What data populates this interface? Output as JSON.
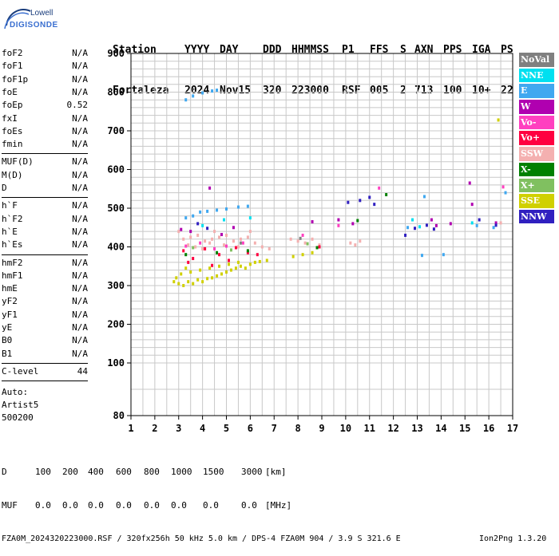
{
  "logo": {
    "top": "Lowell",
    "main": "DIGISONDE"
  },
  "header": {
    "labels": [
      "Station",
      "YYYY",
      "DAY",
      "DDD",
      "HHMMSS",
      "P1",
      "FFS",
      "S",
      "AXN",
      "PPS",
      "IGA",
      "PS"
    ],
    "values": [
      "Fortaleza",
      "2024",
      "Nov15",
      "320",
      "223000",
      "RSF",
      "005",
      "2",
      "713",
      "100",
      "10+",
      "22"
    ]
  },
  "params": {
    "group1": [
      {
        "label": "foF2",
        "value": "N/A"
      },
      {
        "label": "foF1",
        "value": "N/A"
      },
      {
        "label": "foF1p",
        "value": "N/A"
      },
      {
        "label": "foE",
        "value": "N/A"
      },
      {
        "label": "foEp",
        "value": "0.52"
      },
      {
        "label": "fxI",
        "value": "N/A"
      },
      {
        "label": "foEs",
        "value": "N/A"
      },
      {
        "label": "fmin",
        "value": "N/A"
      }
    ],
    "group2": [
      {
        "label": "MUF(D)",
        "value": "N/A"
      },
      {
        "label": "M(D)",
        "value": "N/A"
      },
      {
        "label": "D",
        "value": "N/A"
      }
    ],
    "group3": [
      {
        "label": "h`F",
        "value": "N/A"
      },
      {
        "label": "h`F2",
        "value": "N/A"
      },
      {
        "label": "h`E",
        "value": "N/A"
      },
      {
        "label": "h`Es",
        "value": "N/A"
      }
    ],
    "group4": [
      {
        "label": "hmF2",
        "value": "N/A"
      },
      {
        "label": "hmF1",
        "value": "N/A"
      },
      {
        "label": "hmE",
        "value": "N/A"
      },
      {
        "label": "yF2",
        "value": "N/A"
      },
      {
        "label": "yF1",
        "value": "N/A"
      },
      {
        "label": "yE",
        "value": "N/A"
      },
      {
        "label": "B0",
        "value": "N/A"
      },
      {
        "label": "B1",
        "value": "N/A"
      }
    ],
    "clevel": {
      "label": "C-level",
      "value": "44"
    }
  },
  "auto": {
    "line1": "Auto:",
    "line2": "Artist5",
    "line3": "500200"
  },
  "legend": [
    {
      "label": "NoVal",
      "color": "#808080"
    },
    {
      "label": "NNE",
      "color": "#00e0f0"
    },
    {
      "label": "E",
      "color": "#40a8f0"
    },
    {
      "label": "W",
      "color": "#b000b0"
    },
    {
      "label": "Vo-",
      "color": "#ff40c0"
    },
    {
      "label": "Vo+",
      "color": "#ff0040"
    },
    {
      "label": "SSW",
      "color": "#f4b0b0"
    },
    {
      "label": "X-",
      "color": "#008000"
    },
    {
      "label": "X+",
      "color": "#80c060"
    },
    {
      "label": "SSE",
      "color": "#d0d000"
    },
    {
      "label": "NNW",
      "color": "#3020c0"
    }
  ],
  "bottom": {
    "d_label": "D",
    "d_values": [
      "100",
      "200",
      "400",
      "600",
      "800",
      "1000",
      "1500",
      "3000"
    ],
    "d_unit": "[km]",
    "muf_label": "MUF",
    "muf_values": [
      "0.0",
      "0.0",
      "0.0",
      "0.0",
      "0.0",
      "0.0",
      "0.0",
      "0.0"
    ],
    "muf_unit": "[MHz]",
    "footer": "FZA0M_2024320223000.RSF / 320fx256h 50 kHz 5.0 km / DPS-4 FZA0M 904 / 3.9 S 321.6 E",
    "version": "Ion2Png 1.3.20"
  },
  "chart_data": {
    "type": "scatter",
    "x_ticks": [
      "1",
      "2",
      "3",
      "4",
      "5",
      "6",
      "7",
      "8",
      "9",
      "10",
      "11",
      "12",
      "13",
      "14",
      "15",
      "16",
      "17"
    ],
    "y_ticks": [
      "900",
      "800",
      "700",
      "600",
      "500",
      "400",
      "300",
      "200",
      "100",
      "80"
    ],
    "xlim": [
      1,
      17
    ],
    "ylim": [
      80,
      900
    ],
    "grid": true,
    "legend_placement": "right",
    "series": [
      {
        "name": "E",
        "color": "#40a8f0",
        "points": [
          [
            3.3,
            780
          ],
          [
            3.6,
            790
          ],
          [
            4.0,
            798
          ],
          [
            4.4,
            803
          ],
          [
            4.6,
            805
          ],
          [
            3.3,
            475
          ],
          [
            3.6,
            480
          ],
          [
            3.9,
            490
          ],
          [
            4.2,
            492
          ],
          [
            4.6,
            495
          ],
          [
            5.0,
            498
          ],
          [
            5.5,
            503
          ],
          [
            5.9,
            505
          ],
          [
            13.3,
            530
          ],
          [
            13.2,
            378
          ],
          [
            14.1,
            380
          ],
          [
            12.6,
            450
          ],
          [
            15.5,
            455
          ],
          [
            16.2,
            450
          ],
          [
            16.7,
            540
          ]
        ]
      },
      {
        "name": "SSE",
        "color": "#d0d000",
        "points": [
          [
            2.8,
            310
          ],
          [
            3.0,
            305
          ],
          [
            3.2,
            300
          ],
          [
            3.4,
            310
          ],
          [
            3.6,
            305
          ],
          [
            3.8,
            315
          ],
          [
            4.0,
            310
          ],
          [
            4.2,
            318
          ],
          [
            4.4,
            320
          ],
          [
            4.6,
            325
          ],
          [
            4.8,
            330
          ],
          [
            5.0,
            335
          ],
          [
            5.2,
            340
          ],
          [
            5.4,
            345
          ],
          [
            5.6,
            350
          ],
          [
            5.8,
            345
          ],
          [
            6.0,
            355
          ],
          [
            6.2,
            360
          ],
          [
            6.4,
            362
          ],
          [
            6.7,
            365
          ],
          [
            7.8,
            375
          ],
          [
            8.2,
            380
          ],
          [
            8.6,
            385
          ],
          [
            3.1,
            330
          ],
          [
            3.5,
            335
          ],
          [
            3.9,
            340
          ],
          [
            4.3,
            345
          ],
          [
            4.7,
            350
          ],
          [
            5.1,
            355
          ],
          [
            5.5,
            360
          ],
          [
            2.9,
            320
          ],
          [
            3.3,
            345
          ],
          [
            16.4,
            728
          ]
        ]
      },
      {
        "name": "SSW",
        "color": "#f4b0b0",
        "points": [
          [
            3.2,
            420
          ],
          [
            3.5,
            425
          ],
          [
            3.8,
            430
          ],
          [
            4.1,
            415
          ],
          [
            4.4,
            420
          ],
          [
            4.7,
            425
          ],
          [
            5.0,
            430
          ],
          [
            5.3,
            415
          ],
          [
            5.6,
            420
          ],
          [
            5.9,
            425
          ],
          [
            6.2,
            410
          ],
          [
            6.5,
            400
          ],
          [
            6.8,
            395
          ],
          [
            3.4,
            405
          ],
          [
            3.7,
            400
          ],
          [
            4.0,
            395
          ],
          [
            4.3,
            410
          ],
          [
            4.9,
            405
          ],
          [
            5.5,
            400
          ],
          [
            7.7,
            420
          ],
          [
            8.0,
            415
          ],
          [
            8.3,
            410
          ],
          [
            8.6,
            420
          ],
          [
            8.9,
            405
          ],
          [
            10.2,
            410
          ],
          [
            10.4,
            405
          ],
          [
            10.6,
            415
          ],
          [
            3.0,
            440
          ],
          [
            4.5,
            440
          ],
          [
            6.0,
            440
          ],
          [
            16.5,
            462
          ]
        ]
      },
      {
        "name": "Vo+",
        "color": "#ff0040",
        "points": [
          [
            3.2,
            390
          ],
          [
            3.6,
            370
          ],
          [
            4.1,
            395
          ],
          [
            4.7,
            380
          ],
          [
            5.1,
            365
          ],
          [
            5.4,
            398
          ],
          [
            5.9,
            385
          ],
          [
            6.3,
            380
          ],
          [
            8.9,
            400
          ],
          [
            3.4,
            360
          ],
          [
            4.4,
            352
          ]
        ]
      },
      {
        "name": "Vo-",
        "color": "#ff40c0",
        "points": [
          [
            3.3,
            402
          ],
          [
            3.9,
            410
          ],
          [
            4.5,
            395
          ],
          [
            5.0,
            402
          ],
          [
            5.7,
            410
          ],
          [
            8.2,
            430
          ],
          [
            9.7,
            455
          ],
          [
            11.4,
            552
          ],
          [
            16.6,
            555
          ]
        ]
      },
      {
        "name": "W",
        "color": "#b000b0",
        "points": [
          [
            3.1,
            445
          ],
          [
            3.5,
            440
          ],
          [
            4.3,
            552
          ],
          [
            4.8,
            432
          ],
          [
            5.3,
            450
          ],
          [
            8.6,
            465
          ],
          [
            9.7,
            470
          ],
          [
            10.3,
            460
          ],
          [
            13.6,
            470
          ],
          [
            14.4,
            460
          ],
          [
            15.2,
            565
          ],
          [
            16.3,
            462
          ],
          [
            15.3,
            510
          ],
          [
            13.8,
            455
          ]
        ]
      },
      {
        "name": "NNW",
        "color": "#3020c0",
        "points": [
          [
            3.8,
            460
          ],
          [
            4.2,
            448
          ],
          [
            10.1,
            515
          ],
          [
            10.6,
            520
          ],
          [
            11.0,
            528
          ],
          [
            11.2,
            510
          ],
          [
            12.5,
            430
          ],
          [
            12.9,
            448
          ],
          [
            13.4,
            456
          ],
          [
            13.7,
            446
          ],
          [
            15.6,
            470
          ],
          [
            16.3,
            456
          ]
        ]
      },
      {
        "name": "NNE",
        "color": "#00e0f0",
        "points": [
          [
            4.0,
            455
          ],
          [
            4.9,
            470
          ],
          [
            6.0,
            475
          ],
          [
            12.8,
            470
          ],
          [
            13.1,
            452
          ],
          [
            15.3,
            462
          ]
        ]
      },
      {
        "name": "X-",
        "color": "#008000",
        "points": [
          [
            3.3,
            380
          ],
          [
            4.6,
            385
          ],
          [
            5.9,
            390
          ],
          [
            8.8,
            398
          ],
          [
            11.7,
            535
          ],
          [
            10.5,
            468
          ]
        ]
      },
      {
        "name": "X+",
        "color": "#80c060",
        "points": [
          [
            3.6,
            398
          ],
          [
            5.2,
            392
          ],
          [
            8.4,
            408
          ]
        ]
      },
      {
        "name": "NoVal",
        "color": "#808080",
        "points": [
          [
            5.6,
            410
          ],
          [
            8.1,
            422
          ]
        ]
      }
    ]
  }
}
